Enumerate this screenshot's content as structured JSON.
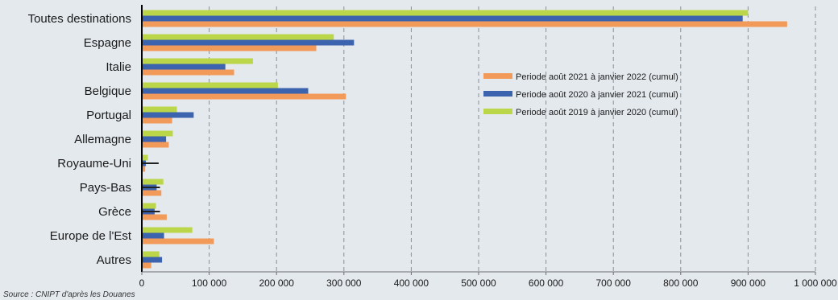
{
  "chart_data": {
    "type": "bar",
    "orientation": "horizontal",
    "categories": [
      "Toutes destinations",
      "Espagne",
      "Italie",
      "Belgique",
      "Portugal",
      "Allemagne",
      "Royaume-Uni",
      "Pays-Bas",
      "Grèce",
      "Europe de l'Est",
      "Autres"
    ],
    "series": [
      {
        "name": "Periode août 2019 à janvier 2020 (cumul)",
        "color": "#bcd64a",
        "values": [
          900000,
          285000,
          165000,
          202000,
          52000,
          46000,
          9000,
          32000,
          21000,
          75000,
          26000
        ]
      },
      {
        "name": "Periode août 2020 à janvier 2021 (cumul)",
        "color": "#3c63ad",
        "values": [
          892000,
          315000,
          124000,
          247000,
          77000,
          36000,
          6000,
          22000,
          19000,
          33000,
          30000
        ]
      },
      {
        "name": "Periode août 2021 à janvier 2022 (cumul)",
        "color": "#f29a5a",
        "values": [
          958000,
          259000,
          137000,
          303000,
          45000,
          40000,
          5000,
          29000,
          37000,
          107000,
          14000
        ]
      }
    ],
    "error_markers": [
      {
        "category": "Royaume-Uni",
        "value": 25000
      },
      {
        "category": "Pays-Bas",
        "value": 27000
      },
      {
        "category": "Grèce",
        "value": 27000
      }
    ],
    "legend_order": [
      2,
      1,
      0
    ],
    "legend_position": "center-right",
    "xlim": [
      0,
      1000000
    ],
    "xticks": [
      "0",
      "100 000",
      "200 000",
      "300 000",
      "400 000",
      "500 000",
      "600 000",
      "700 000",
      "800 000",
      "900 000",
      "1 000 000"
    ],
    "grid": "vertical dashed"
  },
  "source": "Source : CNIPT d'après les Douanes"
}
